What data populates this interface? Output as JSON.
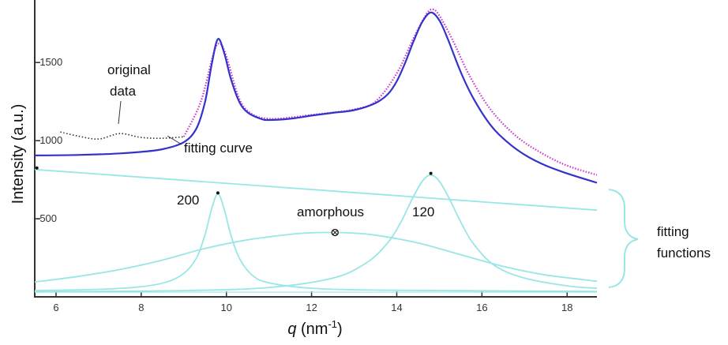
{
  "chart_data": {
    "type": "line",
    "xlabel_var": "q",
    "xlabel_unit_pre": " (nm",
    "xlabel_unit_sup": "-1",
    "xlabel_unit_post": ")",
    "ylabel": "Intensity (a.u.)",
    "xlim": [
      5.5,
      18.7
    ],
    "ylim": [
      0,
      1900
    ],
    "x_ticks": [
      6,
      8,
      10,
      12,
      14,
      16,
      18
    ],
    "y_ticks": [
      500,
      1000,
      1500
    ],
    "y_tick_labels": [
      "-500",
      "-1000",
      "-1500"
    ],
    "baseline": 30,
    "series": [
      {
        "role": "original",
        "color": "#cc33cc",
        "x": [
          6.1,
          6.5,
          7.0,
          7.5,
          8.0,
          8.5,
          9.0,
          9.4,
          9.7,
          9.85,
          10.0,
          10.3,
          10.6,
          11.0,
          11.5,
          12.0,
          12.5,
          13.0,
          13.5,
          14.0,
          14.4,
          14.7,
          14.85,
          15.0,
          15.3,
          15.7,
          16.2,
          16.8,
          17.4,
          18.0,
          18.7
        ],
        "y": [
          1055,
          1030,
          1010,
          1045,
          1020,
          1015,
          1025,
          1250,
          1560,
          1620,
          1540,
          1270,
          1170,
          1140,
          1148,
          1165,
          1180,
          1200,
          1250,
          1430,
          1660,
          1810,
          1840,
          1800,
          1650,
          1420,
          1200,
          1030,
          920,
          840,
          780
        ]
      },
      {
        "role": "fit",
        "color": "#3333cc",
        "x": [
          5.5,
          6.0,
          6.5,
          7.0,
          7.5,
          8.0,
          8.5,
          9.0,
          9.3,
          9.5,
          9.65,
          9.8,
          9.95,
          10.1,
          10.3,
          10.5,
          10.8,
          11.0,
          11.5,
          12.0,
          12.5,
          13.0,
          13.5,
          13.8,
          14.0,
          14.2,
          14.4,
          14.6,
          14.8,
          15.0,
          15.2,
          15.5,
          15.8,
          16.2,
          16.6,
          17.0,
          17.5,
          18.0,
          18.7
        ],
        "y": [
          905,
          906,
          908,
          912,
          918,
          928,
          945,
          990,
          1080,
          1250,
          1480,
          1650,
          1560,
          1400,
          1250,
          1180,
          1140,
          1132,
          1140,
          1160,
          1178,
          1195,
          1240,
          1300,
          1380,
          1500,
          1640,
          1760,
          1820,
          1770,
          1650,
          1440,
          1270,
          1100,
          990,
          910,
          840,
          790,
          730
        ]
      },
      {
        "role": "linear",
        "color": "#99e6e6",
        "x": [
          5.5,
          18.7
        ],
        "y": [
          815,
          555
        ]
      },
      {
        "role": "peak-200",
        "color": "#99e6e6",
        "x": [
          5.5,
          7.0,
          8.0,
          8.6,
          9.0,
          9.3,
          9.5,
          9.65,
          9.8,
          9.95,
          10.1,
          10.3,
          10.6,
          11.0,
          12.0,
          14.0,
          18.7
        ],
        "y": [
          40,
          48,
          65,
          95,
          150,
          250,
          400,
          560,
          660,
          560,
          400,
          250,
          140,
          90,
          55,
          42,
          35
        ]
      },
      {
        "role": "amorphous",
        "color": "#99e6e6",
        "x": [
          5.5,
          6.5,
          7.5,
          8.5,
          9.5,
          10.5,
          11.5,
          12.0,
          12.5,
          13.0,
          13.5,
          14.5,
          15.5,
          16.5,
          17.5,
          18.7
        ],
        "y": [
          95,
          130,
          175,
          235,
          310,
          365,
          400,
          410,
          412,
          408,
          395,
          345,
          270,
          195,
          140,
          100
        ]
      },
      {
        "role": "peak-120",
        "color": "#99e6e6",
        "x": [
          5.5,
          9.0,
          11.0,
          12.5,
          13.3,
          13.8,
          14.1,
          14.35,
          14.6,
          14.8,
          15.0,
          15.25,
          15.5,
          15.8,
          16.3,
          17.0,
          18.0,
          18.7
        ],
        "y": [
          32,
          40,
          60,
          120,
          220,
          350,
          480,
          620,
          740,
          780,
          740,
          620,
          480,
          340,
          200,
          120,
          70,
          55
        ]
      }
    ],
    "markers": [
      {
        "x": 5.55,
        "y": 825,
        "type": "dot"
      },
      {
        "x": 9.8,
        "y": 665,
        "type": "dot"
      },
      {
        "x": 14.8,
        "y": 790,
        "type": "dot"
      },
      {
        "x": 12.55,
        "y": 412,
        "type": "otimes"
      }
    ],
    "annotations": {
      "original_line1": "original",
      "original_line2": "data",
      "fitting_curve": "fitting curve",
      "peak_200": "200",
      "peak_120": "120",
      "amorphous": "amorphous",
      "fitting_functions_line1": "fitting",
      "fitting_functions_line2": "functions"
    }
  }
}
